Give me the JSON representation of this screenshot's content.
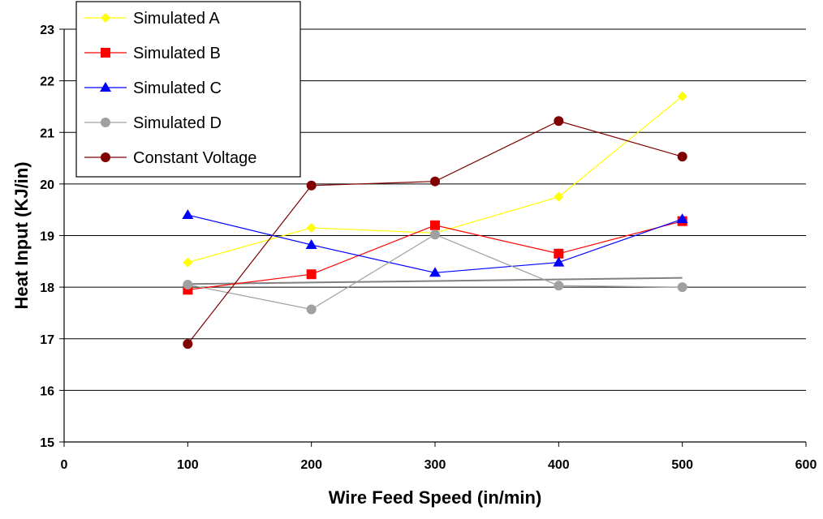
{
  "chart_data": {
    "type": "line",
    "title": "",
    "xlabel": "Wire Feed Speed (in/min)",
    "ylabel": "Heat Input (KJ/in)",
    "xlim": [
      0,
      600
    ],
    "ylim": [
      15,
      23
    ],
    "xticks": [
      "0",
      "100",
      "200",
      "300",
      "400",
      "500",
      "600"
    ],
    "yticks": [
      "15",
      "16",
      "17",
      "18",
      "19",
      "20",
      "21",
      "22",
      "23"
    ],
    "grid": "horizontal",
    "legend_position": "top-left",
    "x": [
      100,
      200,
      300,
      400,
      500
    ],
    "series": [
      {
        "name": "Simulated A",
        "color": "#ffff00",
        "marker": "diamond",
        "values": [
          18.48,
          19.15,
          19.05,
          19.75,
          21.7
        ]
      },
      {
        "name": "Simulated B",
        "color": "#ff0000",
        "marker": "square",
        "values": [
          17.95,
          18.25,
          19.2,
          18.65,
          19.28
        ]
      },
      {
        "name": "Simulated C",
        "color": "#0000ff",
        "marker": "triangle",
        "values": [
          19.4,
          18.82,
          18.28,
          18.48,
          19.32
        ]
      },
      {
        "name": "Simulated D",
        "color": "#a0a0a0",
        "marker": "circle",
        "values": [
          18.05,
          17.57,
          19.02,
          18.03,
          18.0
        ]
      },
      {
        "name": "Constant Voltage",
        "color": "#800000",
        "marker": "circle",
        "values": [
          16.9,
          19.97,
          20.05,
          21.22,
          20.53
        ]
      }
    ],
    "trendline": {
      "color": "#808080",
      "x": [
        100,
        500
      ],
      "values": [
        18.06,
        18.18
      ]
    }
  }
}
